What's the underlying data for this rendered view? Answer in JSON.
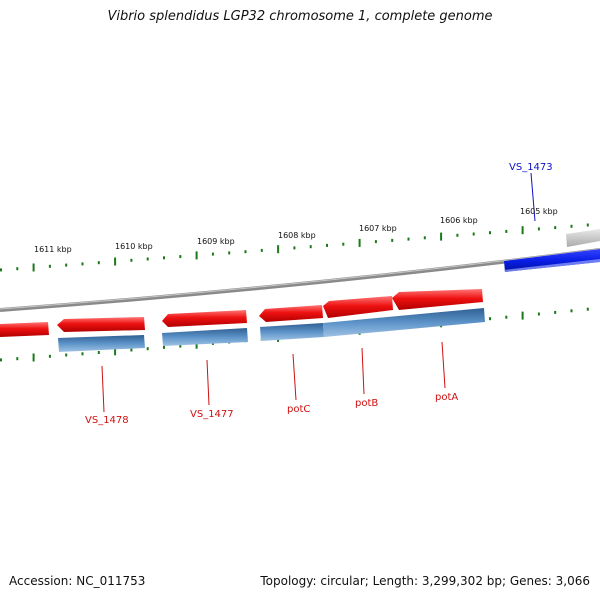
{
  "title": "Vibrio splendidus LGP32 chromosome 1, complete genome",
  "footer": {
    "accession": "Accession: NC_011753",
    "summary": "Topology: circular; Length: 3,299,302 bp; Genes: 3,066"
  },
  "scale": {
    "ticks": [
      "1611 kbp",
      "1610 kbp",
      "1609 kbp",
      "1608 kbp",
      "1607 kbp",
      "1606 kbp",
      "1605 kbp"
    ]
  },
  "genes": [
    {
      "label": "VS_1478",
      "color": "#d01010"
    },
    {
      "label": "VS_1477",
      "color": "#d01010"
    },
    {
      "label": "potC",
      "color": "#d01010"
    },
    {
      "label": "potB",
      "color": "#d01010"
    },
    {
      "label": "potA",
      "color": "#d01010"
    },
    {
      "label": "VS_1473",
      "color": "#1010c8"
    }
  ],
  "colors": {
    "reverse_strand_gene": "#ee1111",
    "reverse_strand_cds": "#4a82b8",
    "forward_strand_gene": "#0a1ee6",
    "backbone": "#8a8a8a",
    "scale_ticks": "#1a7a1a"
  }
}
